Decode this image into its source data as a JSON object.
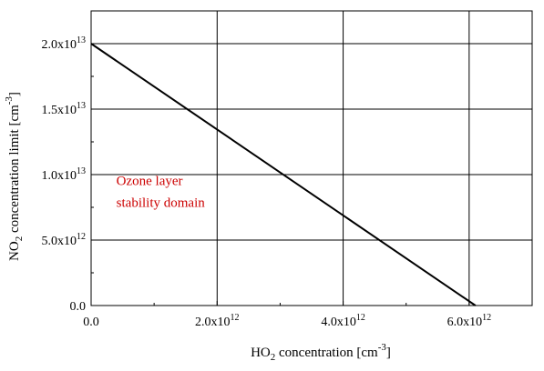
{
  "chart_data": {
    "type": "line",
    "xlabel": {
      "main": "HO",
      "sub": "2",
      "rest": " concentration [cm",
      "sup": "-3",
      "end": "]"
    },
    "ylabel": {
      "main": "NO",
      "sub": "2",
      "rest": " concentration limit [cm",
      "sup": "-3",
      "end": "]"
    },
    "xlim": [
      0,
      7000000000000.0
    ],
    "ylim": [
      0,
      22500000000000.0
    ],
    "grid": true,
    "x_ticks": [
      {
        "value": 0,
        "mant": "0.0",
        "exp": ""
      },
      {
        "value": 2000000000000.0,
        "mant": "2.0x10",
        "exp": "12"
      },
      {
        "value": 4000000000000.0,
        "mant": "4.0x10",
        "exp": "12"
      },
      {
        "value": 6000000000000.0,
        "mant": "6.0x10",
        "exp": "12"
      }
    ],
    "y_ticks": [
      {
        "value": 0,
        "mant": "0.0",
        "exp": ""
      },
      {
        "value": 5000000000000.0,
        "mant": "5.0x10",
        "exp": "12"
      },
      {
        "value": 10000000000000.0,
        "mant": "1.0x10",
        "exp": "13"
      },
      {
        "value": 15000000000000.0,
        "mant": "1.5x10",
        "exp": "13"
      },
      {
        "value": 20000000000000.0,
        "mant": "2.0x10",
        "exp": "13"
      }
    ],
    "series": [
      {
        "x": [
          0,
          6100000000000.0
        ],
        "y": [
          20000000000000.0,
          0
        ],
        "color": "#000000"
      }
    ],
    "annotation": {
      "lines": [
        "Ozone layer",
        "stability domain"
      ],
      "color": "#cc0000",
      "x": 400000000000.0,
      "y": 8500000000000.0
    }
  }
}
